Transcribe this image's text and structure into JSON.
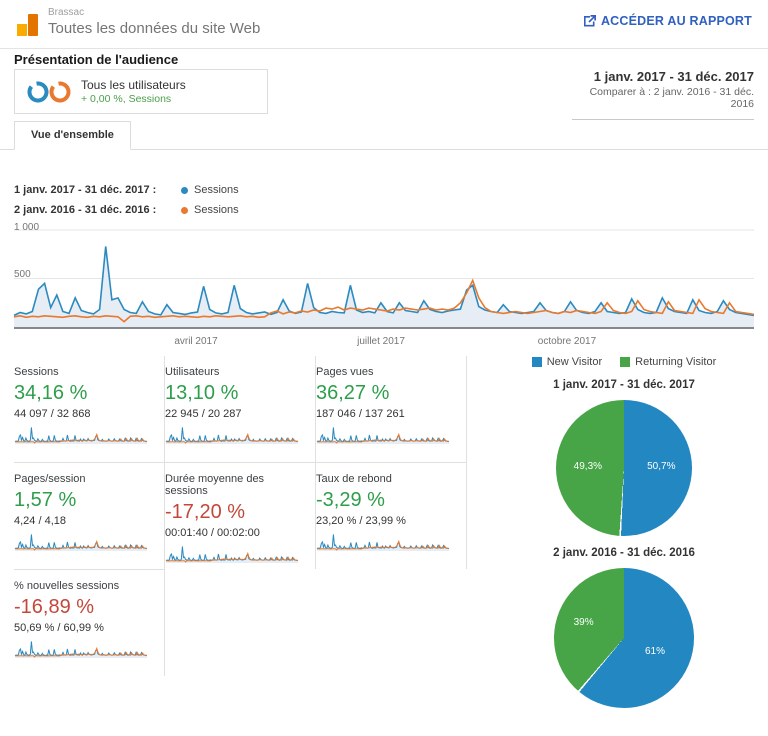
{
  "header": {
    "account": "Brassac",
    "property": "Toutes les données du site Web",
    "report_link": "ACCÉDER AU RAPPORT"
  },
  "page_title": "Présentation de l'audience",
  "segment": {
    "label": "Tous les utilisateurs",
    "sublabel": "+ 0,00 %, Sessions"
  },
  "date_range": {
    "current": "1 janv. 2017 - 31 déc. 2017",
    "compare": "Comparer à : 2 janv. 2016 - 31 déc. 2016"
  },
  "tab": "Vue d'ensemble",
  "colors": {
    "blue": "#2b8ac0",
    "orange": "#e8792e",
    "green": "#2e9e4b",
    "red": "#c4473a",
    "area": "#e7edf4",
    "link_blue": "#3060c0",
    "pie_blue": "#2387c2",
    "pie_green": "#47a447"
  },
  "chart_data": [
    {
      "type": "line",
      "title": "Sessions au fil du temps",
      "x_unit": "jours (1 janv. 2017 - 31 déc. 2017, échantillonnage ~3 jours, valeurs estimées)",
      "xticks": [
        "avril 2017",
        "juillet 2017",
        "octobre 2017"
      ],
      "yticks": [
        "1 000",
        "500"
      ],
      "ylim": [
        0,
        1000
      ],
      "grid": true,
      "legend_position": "top-left",
      "legend": [
        {
          "label": "1 janv. 2017 - 31 déc. 2017 :",
          "series": "Sessions",
          "color": "#2b8ac0"
        },
        {
          "label": "2 janv. 2016 - 31 déc. 2016 :",
          "series": "Sessions",
          "color": "#e8792e"
        }
      ],
      "series": [
        {
          "name": "Sessions (1 janv. 2017 - 31 déc. 2017)",
          "color": "#2b8ac0",
          "area": true,
          "values": [
            120,
            150,
            135,
            160,
            390,
            450,
            200,
            330,
            160,
            140,
            300,
            170,
            150,
            135,
            180,
            830,
            280,
            300,
            180,
            150,
            140,
            260,
            160,
            135,
            125,
            230,
            150,
            140,
            130,
            145,
            155,
            420,
            180,
            145,
            135,
            150,
            430,
            190,
            150,
            135,
            145,
            155,
            130,
            150,
            280,
            165,
            140,
            155,
            450,
            200,
            150,
            140,
            160,
            150,
            145,
            430,
            175,
            150,
            160,
            145,
            250,
            160,
            145,
            250,
            170,
            160,
            150,
            270,
            180,
            160,
            150,
            165,
            175,
            185,
            380,
            430,
            210,
            175,
            160,
            150,
            230,
            160,
            150,
            140,
            150,
            160,
            250,
            170,
            150,
            140,
            160,
            260,
            170,
            150,
            140,
            160,
            250,
            160,
            150,
            140,
            150,
            290,
            180,
            150,
            140,
            150,
            300,
            190,
            160,
            150,
            140,
            280,
            170,
            150,
            140,
            160,
            270,
            180,
            150,
            140,
            130,
            120
          ]
        },
        {
          "name": "Sessions (2 janv. 2016 - 31 déc. 2016)",
          "color": "#e8792e",
          "area": false,
          "values": [
            105,
            115,
            100,
            110,
            105,
            115,
            110,
            105,
            100,
            110,
            115,
            105,
            100,
            110,
            105,
            115,
            110,
            105,
            55,
            110,
            115,
            105,
            110,
            100,
            105,
            110,
            115,
            105,
            110,
            105,
            100,
            110,
            105,
            115,
            110,
            105,
            110,
            115,
            105,
            110,
            100,
            105,
            145,
            165,
            135,
            155,
            145,
            165,
            155,
            175,
            165,
            195,
            185,
            205,
            175,
            195,
            185,
            175,
            195,
            185,
            175,
            165,
            185,
            175,
            195,
            185,
            175,
            185,
            195,
            175,
            185,
            175,
            195,
            250,
            350,
            480,
            300,
            200,
            160,
            150,
            140,
            150,
            160,
            150,
            140,
            150,
            160,
            170,
            150,
            140,
            160,
            150,
            170,
            160,
            150,
            140,
            160,
            250,
            170,
            150,
            140,
            160,
            270,
            180,
            160,
            150,
            140,
            260,
            170,
            160,
            150,
            140,
            280,
            190,
            160,
            150,
            140,
            250,
            160,
            150,
            140,
            130
          ]
        }
      ]
    },
    {
      "type": "pie",
      "title": "1 janv. 2017 - 31 déc. 2017",
      "slices": [
        {
          "label": "New Visitor",
          "value": 50.7,
          "display": "50,7%",
          "color": "#2387c2"
        },
        {
          "label": "Returning Visitor",
          "value": 49.3,
          "display": "49,3%",
          "color": "#47a447"
        }
      ]
    },
    {
      "type": "pie",
      "title": "2 janv. 2016 - 31 déc. 2016",
      "slices": [
        {
          "label": "New Visitor",
          "value": 61,
          "display": "61%",
          "color": "#2387c2"
        },
        {
          "label": "Returning Visitor",
          "value": 39,
          "display": "39%",
          "color": "#47a447"
        }
      ]
    }
  ],
  "cards": [
    {
      "label": "Sessions",
      "delta": "34,16 %",
      "delta_color": "#2e9e4b",
      "values": "44 097 / 32 868"
    },
    {
      "label": "Utilisateurs",
      "delta": "13,10 %",
      "delta_color": "#2e9e4b",
      "values": "22 945 / 20 287"
    },
    {
      "label": "Pages vues",
      "delta": "36,27 %",
      "delta_color": "#2e9e4b",
      "values": "187 046 / 137 261"
    },
    {
      "label": "Pages/session",
      "delta": "1,57 %",
      "delta_color": "#2e9e4b",
      "values": "4,24 / 4,18"
    },
    {
      "label": "Durée moyenne des sessions",
      "delta": "-17,20 %",
      "delta_color": "#c4473a",
      "values": "00:01:40 / 00:02:00"
    },
    {
      "label": "Taux de rebond",
      "delta": "-3,29 %",
      "delta_color": "#2e9e4b",
      "values": "23,20 % / 23,99 %"
    },
    {
      "label": "% nouvelles sessions",
      "delta": "-16,89 %",
      "delta_color": "#c4473a",
      "values": "50,69 % / 60,99 %"
    }
  ],
  "pie_legend": [
    {
      "label": "New Visitor",
      "color": "#2387c2"
    },
    {
      "label": "Returning Visitor",
      "color": "#47a447"
    }
  ]
}
